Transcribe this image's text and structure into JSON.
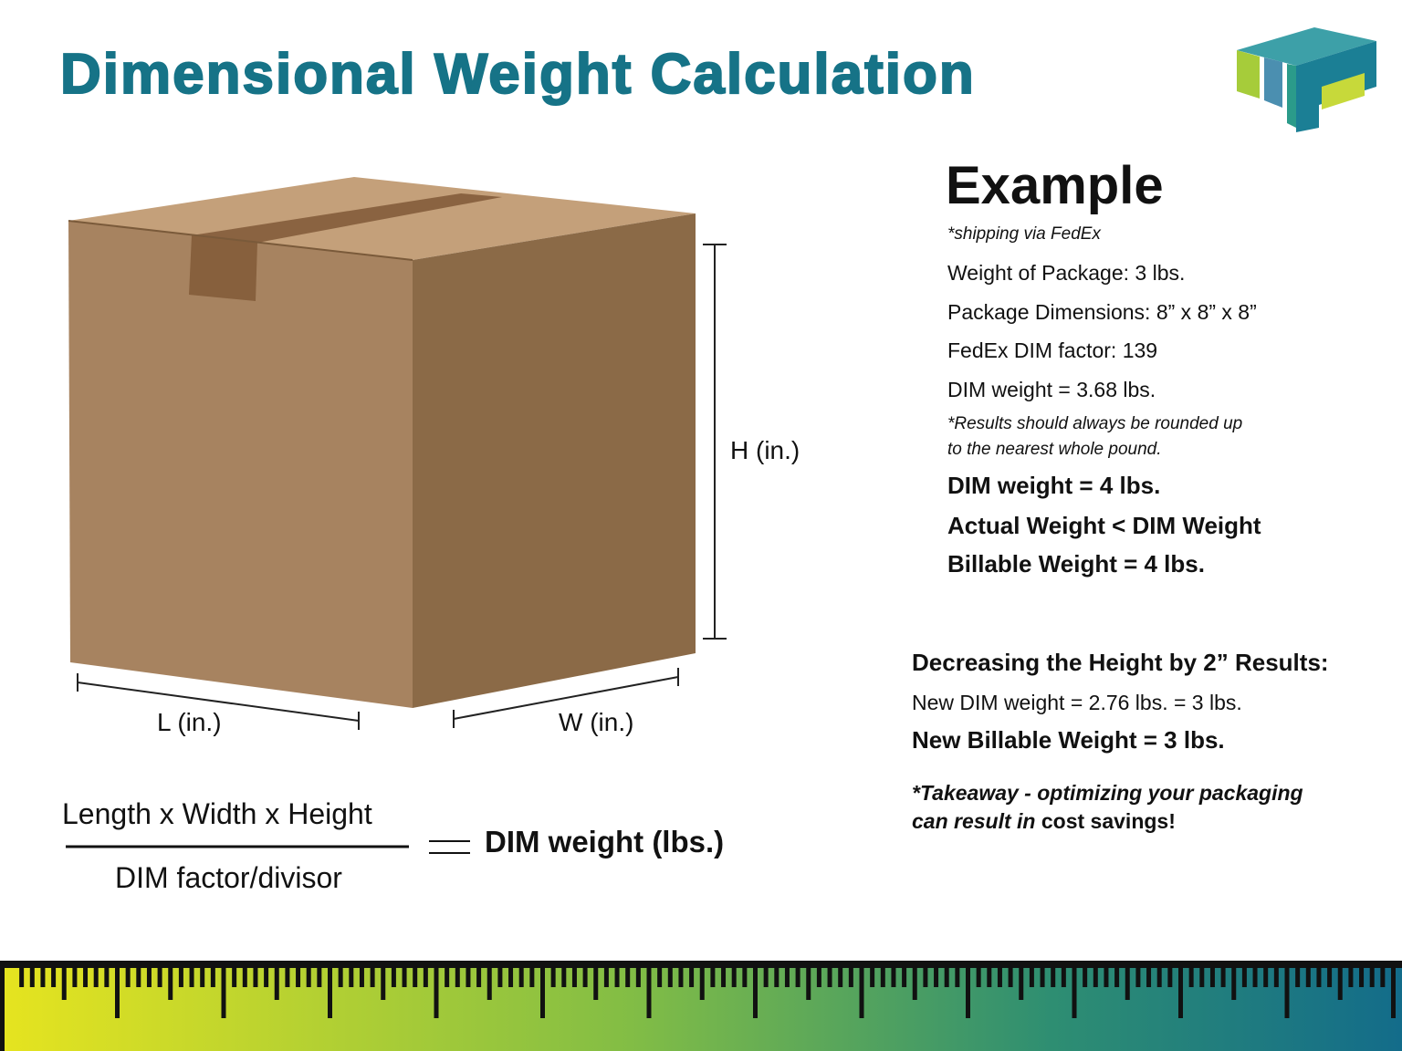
{
  "header": {
    "title": "Dimensional Weight Calculation"
  },
  "box": {
    "height_label": "H (in.)",
    "length_label": "L (in.)",
    "width_label": "W (in.)"
  },
  "formula": {
    "numerator": "Length x Width x Height",
    "denominator": "DIM factor/divisor",
    "result": "DIM weight (lbs.)"
  },
  "example": {
    "heading": "Example",
    "note": "*shipping via FedEx",
    "lines": [
      "Weight of Package: 3 lbs.",
      "Package Dimensions: 8” x 8” x 8”",
      "FedEx DIM factor: 139",
      "DIM weight = 3.68 lbs."
    ],
    "rounding_note": [
      "*Results should always be rounded up",
      "to the nearest whole pound."
    ],
    "bold_lines": [
      "DIM weight = 4 lbs.",
      "Actual Weight < DIM Weight",
      "Billable Weight = 4 lbs."
    ]
  },
  "decrease": {
    "heading": "Decreasing the Height by 2” Results:",
    "line": "New DIM weight = 2.76 lbs. = 3 lbs.",
    "bold_line": "New Billable Weight  = 3 lbs.",
    "takeaway": [
      "*Takeaway - optimizing your packaging",
      "can result in",
      "cost savings!"
    ]
  }
}
